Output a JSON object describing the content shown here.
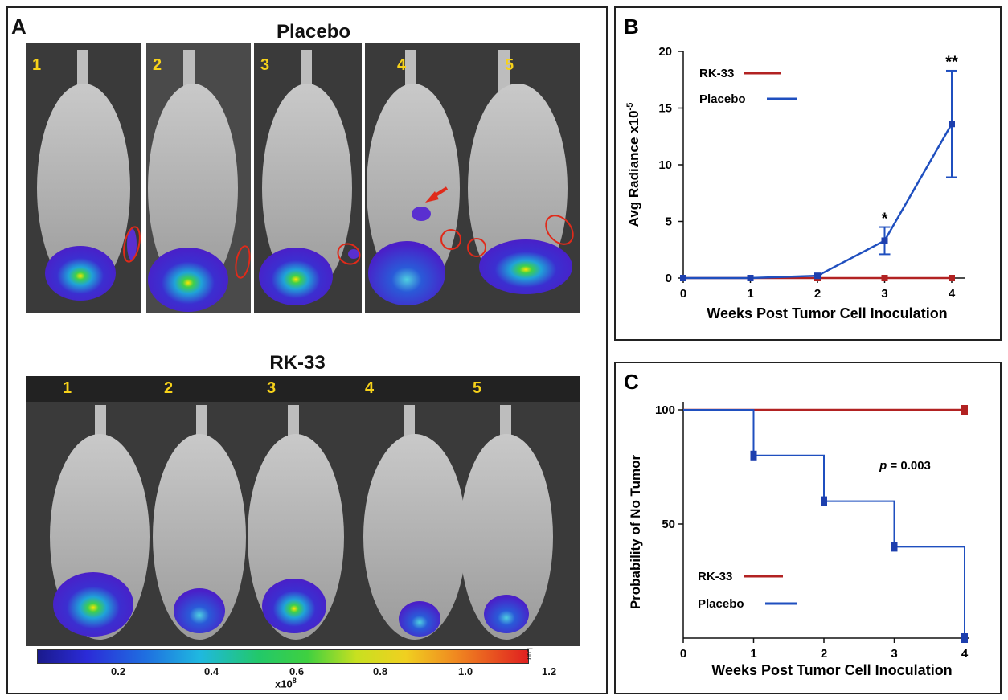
{
  "colors": {
    "rk33": "#b22222",
    "placebo": "#1f4fbf",
    "marker": "#1d3fae",
    "number": "#f7d21a",
    "photo_bg": "#3a3a3a"
  },
  "panel_a": {
    "letter": "A",
    "placebo_title": "Placebo",
    "rk33_title": "RK-33",
    "placebo_numbers": [
      "1",
      "2",
      "3",
      "4",
      "5"
    ],
    "rk33_numbers": [
      "1",
      "2",
      "3",
      "4",
      "5"
    ],
    "colorbar": {
      "tick_labels": [
        "0.2",
        "0.4",
        "0.6",
        "0.8",
        "1.0",
        "1.2"
      ],
      "unit_label": "x10",
      "unit_exp": "8",
      "side_label": "Lum"
    }
  },
  "chart_data": [
    {
      "id": "B",
      "type": "line",
      "panel_letter": "B",
      "xlabel": "Weeks Post Tumor Cell Inoculation",
      "ylabel": "Avg Radiance x10",
      "ylabel_exp": "-5",
      "x": [
        0,
        1,
        2,
        3,
        4
      ],
      "xlim": [
        0,
        4
      ],
      "ylim": [
        0,
        20
      ],
      "xticks": [
        "0",
        "1",
        "2",
        "3",
        "4"
      ],
      "yticks": [
        "0",
        "5",
        "10",
        "15",
        "20"
      ],
      "series": [
        {
          "name": "RK-33",
          "color": "#b22222",
          "values": [
            0,
            0,
            0,
            0,
            0
          ]
        },
        {
          "name": "Placebo",
          "color": "#1f4fbf",
          "values": [
            0,
            0,
            0.2,
            3.3,
            13.6
          ],
          "errors": [
            0,
            0,
            0.1,
            1.2,
            4.7
          ]
        }
      ],
      "annotations": [
        {
          "x": 3,
          "y": 4.8,
          "text": "*"
        },
        {
          "x": 4,
          "y": 18.6,
          "text": "**"
        }
      ],
      "legend": "top-left"
    },
    {
      "id": "C",
      "type": "line",
      "panel_letter": "C",
      "xlabel": "Weeks Post Tumor Cell Inoculation",
      "ylabel": "Probability of No Tumor",
      "x": [
        0,
        1,
        2,
        3,
        4
      ],
      "xlim": [
        0,
        4
      ],
      "ylim": [
        0,
        100
      ],
      "xticks": [
        "0",
        "1",
        "2",
        "3",
        "4"
      ],
      "yticks": [
        "50",
        "100"
      ],
      "ytick_values": [
        50,
        100
      ],
      "series": [
        {
          "name": "RK-33",
          "color": "#b22222",
          "values": [
            100,
            100,
            100,
            100,
            100
          ],
          "step": false
        },
        {
          "name": "Placebo",
          "color": "#1f4fbf",
          "values": [
            100,
            80,
            60,
            40,
            0
          ],
          "step": true
        }
      ],
      "p_label": "p",
      "p_value": " = 0.003",
      "legend": "bottom-left"
    }
  ]
}
